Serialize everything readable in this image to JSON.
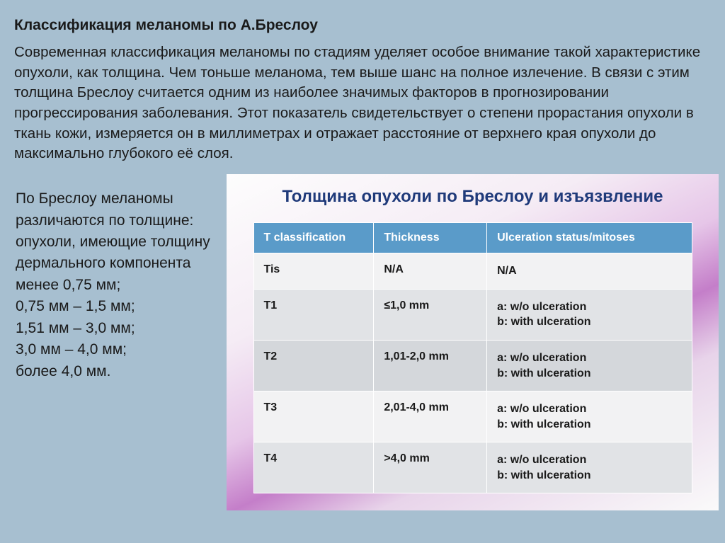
{
  "page": {
    "title": "Классификация меланомы по А.Бреслоу",
    "intro": "Современная классификация меланомы по стадиям уделяет особое внимание такой характеристике опухоли, как толщина. Чем тоньше меланома, тем выше шанс на полное излечение. В связи с этим толщина Бреслоу считается одним из наиболее значимых факторов в прогнозировании прогрессирования заболевания. Этот показатель свидетельствует о степени прорастания опухоли в ткань кожи, измеряется он в миллиметрах и отражает расстояние от верхнего края опухоли до максимально глубокого её слоя."
  },
  "left": {
    "lead": "По Бреслоу меланомы различаются по толщине:",
    "item0": "опухоли, имеющие толщину дермального компонента менее 0,75 мм;",
    "item1": "0,75 мм – 1,5 мм;",
    "item2": "1,51 мм – 3,0 мм;",
    "item3": "3,0 мм – 4,0 мм;",
    "item4": "более 4,0 мм."
  },
  "panel": {
    "title": "Толщина опухоли по Бреслоу и изъязвление",
    "background_gradient": [
      "#fdfdfd",
      "#f5ecf5",
      "#e6c6e8",
      "#c47ec9",
      "#e8d4ea",
      "#fafafa"
    ],
    "title_color": "#1f3a7a"
  },
  "table": {
    "header_bg": "#5a9bc9",
    "header_fg": "#ffffff",
    "row_bg_light": "#f2f2f3",
    "row_bg_mid": "#e1e3e6",
    "row_bg_dark": "#d4d7db",
    "columns": [
      "T classification",
      "Thickness",
      "Ulceration status/mitoses"
    ],
    "rows": [
      {
        "t": "Tis",
        "thickness": "N/A",
        "ulc": "N/A",
        "shade": "light"
      },
      {
        "t": "T1",
        "thickness": "≤1,0 mm",
        "ulc": "a: w/o ulceration\nb: with ulceration",
        "shade": "mid"
      },
      {
        "t": "T2",
        "thickness": "1,01-2,0 mm",
        "ulc": "a: w/o ulceration\nb: with ulceration",
        "shade": "dark"
      },
      {
        "t": "T3",
        "thickness": "2,01-4,0 mm",
        "ulc": "a: w/o ulceration\nb: with ulceration",
        "shade": "light"
      },
      {
        "t": "T4",
        "thickness": ">4,0 mm",
        "ulc": "a: w/o ulceration\nb: with ulceration",
        "shade": "mid"
      }
    ]
  },
  "colors": {
    "page_bg": "#a7bfd0",
    "text": "#1a1a1a"
  }
}
